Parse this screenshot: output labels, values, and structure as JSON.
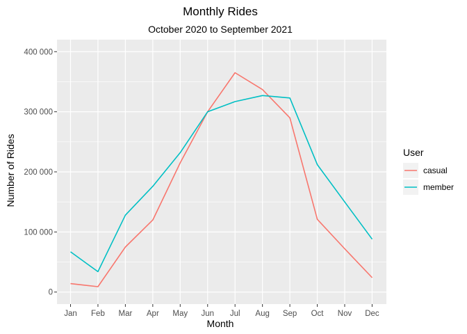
{
  "chart_data": {
    "type": "line",
    "title": "Monthly Rides",
    "subtitle": "October 2020 to September 2021",
    "xlabel": "Month",
    "ylabel": "Number of Rides",
    "categories": [
      "Jan",
      "Feb",
      "Mar",
      "Apr",
      "May",
      "Jun",
      "Jul",
      "Aug",
      "Sep",
      "Oct",
      "Nov",
      "Dec"
    ],
    "ylim": [
      -20000,
      420000
    ],
    "yticks": [
      0,
      100000,
      200000,
      300000,
      400000
    ],
    "ytick_labels": [
      "0",
      "100 000",
      "200 000",
      "300 000",
      "400 000"
    ],
    "grid": true,
    "legend": {
      "title": "User",
      "position": "right"
    },
    "series": [
      {
        "name": "casual",
        "color": "#F8766D",
        "values": [
          14000,
          9000,
          75000,
          120000,
          215000,
          300000,
          365000,
          337000,
          290000,
          121000,
          72000,
          24000
        ]
      },
      {
        "name": "member",
        "color": "#00BFC4",
        "values": [
          67000,
          34000,
          128000,
          176000,
          232000,
          300000,
          317000,
          327000,
          323000,
          212000,
          150000,
          88000
        ]
      }
    ]
  }
}
